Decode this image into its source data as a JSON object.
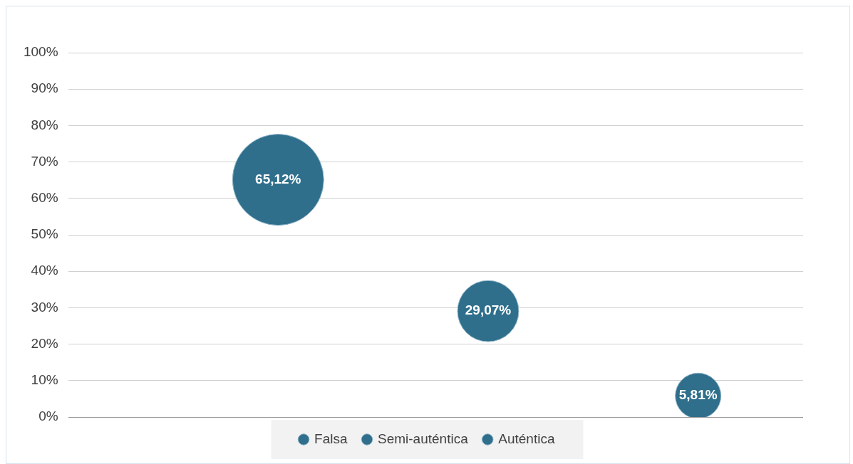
{
  "chart_data": {
    "type": "bubble",
    "categories": [
      null,
      null,
      null
    ],
    "series": [
      {
        "name": "Falsa",
        "color": "#2f6f8c",
        "values": [
          65.12,
          null,
          null
        ],
        "sizes": [
          1,
          null,
          null
        ],
        "value_labels": [
          "65,12%",
          null,
          null
        ]
      },
      {
        "name": "Semi-auténtica",
        "color": "#2f6f8c",
        "values": [
          null,
          29.07,
          null
        ],
        "sizes": [
          null,
          0.45,
          null
        ],
        "value_labels": [
          null,
          "29,07%",
          null
        ]
      },
      {
        "name": "Auténtica",
        "color": "#2f6f8c",
        "values": [
          null,
          null,
          5.81
        ],
        "sizes": [
          null,
          null,
          0.25
        ],
        "value_labels": [
          null,
          null,
          "5,81%"
        ]
      }
    ],
    "ylim": [
      0,
      100
    ],
    "yticks": [
      {
        "value": 0,
        "label": "0%"
      },
      {
        "value": 10,
        "label": "10%"
      },
      {
        "value": 20,
        "label": "20%"
      },
      {
        "value": 30,
        "label": "30%"
      },
      {
        "value": 40,
        "label": "40%"
      },
      {
        "value": 50,
        "label": "50%"
      },
      {
        "value": 60,
        "label": "60%"
      },
      {
        "value": 70,
        "label": "70%"
      },
      {
        "value": 80,
        "label": "80%"
      },
      {
        "value": 90,
        "label": "90%"
      },
      {
        "value": 100,
        "label": "100%"
      }
    ],
    "grid": "y",
    "legend": "bottom",
    "tick_labels": "y"
  }
}
